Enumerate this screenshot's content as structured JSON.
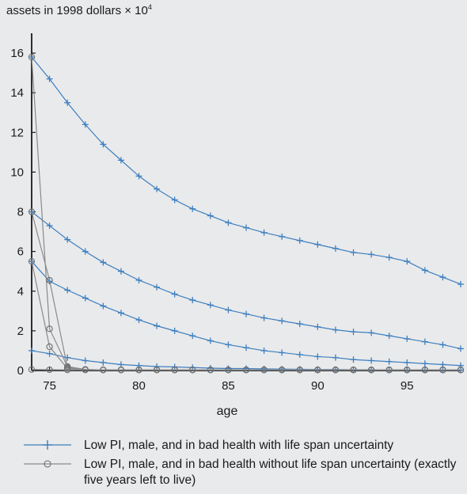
{
  "chart_data": {
    "type": "line",
    "title": "assets in 1998 dollars × 10",
    "title_superscript": "4",
    "xlabel": "age",
    "ylabel": "",
    "xlim": [
      74,
      98
    ],
    "ylim": [
      0,
      17
    ],
    "xticks": [
      75,
      80,
      85,
      90,
      95
    ],
    "yticks": [
      0,
      2,
      4,
      6,
      8,
      10,
      12,
      14,
      16
    ],
    "grid": false,
    "legend_position": "bottom",
    "colors": {
      "uncertainty": "#3d7fc0",
      "no_uncertainty": "#8a8a8a"
    },
    "x": [
      74,
      75,
      76,
      77,
      78,
      79,
      80,
      81,
      82,
      83,
      84,
      85,
      86,
      87,
      88,
      89,
      90,
      91,
      92,
      93,
      94,
      95,
      96,
      97,
      98
    ],
    "series": [
      {
        "name": "Low PI, male, and in bad health with life span uncertainty",
        "marker": "plus",
        "values": [
          15.8,
          14.7,
          13.5,
          12.4,
          11.4,
          10.6,
          9.8,
          9.15,
          8.6,
          8.15,
          7.8,
          7.45,
          7.2,
          6.95,
          6.75,
          6.55,
          6.35,
          6.15,
          5.95,
          5.85,
          5.7,
          5.5,
          5.05,
          4.7,
          4.35
        ]
      },
      {
        "name": "Low PI, male, and in bad health with life span uncertainty",
        "marker": "plus",
        "values": [
          8.0,
          7.3,
          6.6,
          6.0,
          5.45,
          5.0,
          4.55,
          4.2,
          3.85,
          3.55,
          3.3,
          3.05,
          2.85,
          2.65,
          2.5,
          2.35,
          2.2,
          2.05,
          1.95,
          1.9,
          1.75,
          1.6,
          1.45,
          1.3,
          1.1
        ]
      },
      {
        "name": "Low PI, male, and in bad health with life span uncertainty",
        "marker": "plus",
        "values": [
          5.5,
          4.5,
          4.05,
          3.65,
          3.25,
          2.9,
          2.55,
          2.25,
          2.0,
          1.75,
          1.5,
          1.3,
          1.15,
          1.0,
          0.9,
          0.8,
          0.7,
          0.65,
          0.55,
          0.5,
          0.45,
          0.4,
          0.35,
          0.3,
          0.25
        ]
      },
      {
        "name": "Low PI, male, and in bad health with life span uncertainty",
        "marker": "plus",
        "values": [
          1.0,
          0.85,
          0.65,
          0.5,
          0.4,
          0.3,
          0.25,
          0.2,
          0.18,
          0.15,
          0.12,
          0.1,
          0.1,
          0.08,
          0.07,
          0.06,
          0.05,
          0.05,
          0.04,
          0.04,
          0.03,
          0.03,
          0.03,
          0.02,
          0.02
        ]
      },
      {
        "name": "Low PI, male, and in bad health without life span uncertainty (exactly five years left to live)",
        "marker": "circle",
        "values": [
          15.8,
          2.1,
          0.2,
          0.05,
          0.03,
          0.03,
          0.03,
          0.03,
          0.03,
          0.03,
          0.03,
          0.03,
          0.03,
          0.03,
          0.03,
          0.03,
          0.03,
          0.03,
          0.03,
          0.03,
          0.03,
          0.03,
          0.03,
          0.03,
          0.03
        ]
      },
      {
        "name": "Low PI, male, and in bad health without life span uncertainty (exactly five years left to live)",
        "marker": "circle",
        "values": [
          8.0,
          4.55,
          0.15,
          0.05,
          0.03,
          0.03,
          0.03,
          0.03,
          0.03,
          0.03,
          0.03,
          0.03,
          0.03,
          0.03,
          0.03,
          0.03,
          0.03,
          0.03,
          0.03,
          0.03,
          0.03,
          0.03,
          0.03,
          0.03,
          0.03
        ]
      },
      {
        "name": "Low PI, male, and in bad health without life span uncertainty (exactly five years left to live)",
        "marker": "circle",
        "values": [
          5.5,
          1.2,
          0.1,
          0.04,
          0.03,
          0.03,
          0.03,
          0.03,
          0.03,
          0.03,
          0.03,
          0.03,
          0.03,
          0.03,
          0.03,
          0.03,
          0.03,
          0.03,
          0.03,
          0.03,
          0.03,
          0.03,
          0.03,
          0.03,
          0.03
        ]
      },
      {
        "name": "Low PI, male, and in bad health without life span uncertainty (exactly five years left to live)",
        "marker": "circle",
        "values": [
          0.05,
          0.04,
          0.03,
          0.03,
          0.03,
          0.03,
          0.03,
          0.03,
          0.03,
          0.03,
          0.03,
          0.03,
          0.03,
          0.03,
          0.03,
          0.03,
          0.03,
          0.03,
          0.03,
          0.03,
          0.03,
          0.03,
          0.03,
          0.03,
          0.03
        ]
      }
    ],
    "legend": [
      {
        "label": "Low PI, male, and in bad health with life span uncertainty",
        "marker": "plus"
      },
      {
        "label": "Low PI, male, and in bad health without life span uncertainty (exactly five years left to live)",
        "marker": "circle"
      }
    ]
  }
}
